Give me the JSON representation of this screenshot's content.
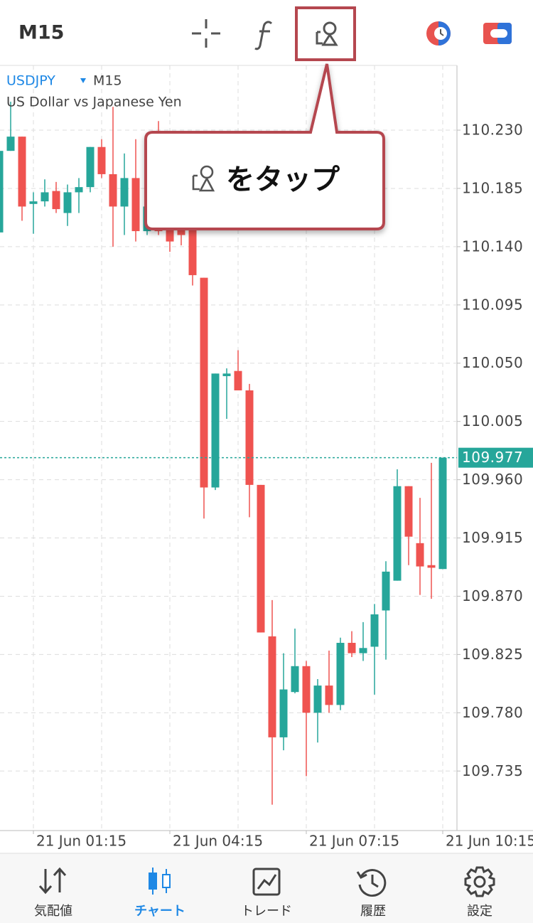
{
  "toolbar": {
    "timeframe": "M15"
  },
  "symbol": {
    "name": "USDJPY",
    "timeframe": "M15",
    "description": "US Dollar vs Japanese Yen"
  },
  "callout": {
    "text": "をタップ"
  },
  "chart_data": {
    "type": "candlestick",
    "categories": [
      null,
      null,
      null,
      "21 Jun 01:15",
      null,
      null,
      null,
      null,
      null,
      null,
      null,
      null,
      null,
      null,
      null,
      "21 Jun 04:15",
      null,
      null,
      null,
      null,
      null,
      null,
      null,
      null,
      null,
      null,
      null,
      "21 Jun 07:15",
      null,
      null,
      null,
      null,
      null,
      null,
      null,
      null,
      null,
      null,
      null,
      "21 Jun 10:15"
    ],
    "open": [
      110.151,
      110.214,
      110.225,
      110.173,
      110.175,
      110.183,
      110.166,
      110.182,
      110.186,
      110.217,
      110.196,
      110.171,
      110.193,
      110.152,
      110.193,
      110.155,
      110.166,
      110.155,
      110.116,
      109.954,
      110.04,
      110.044,
      110.029,
      109.956,
      109.839,
      109.761,
      109.796,
      109.816,
      109.78,
      109.801,
      109.786,
      109.834,
      109.826,
      109.831,
      109.859,
      109.882,
      109.955,
      109.911,
      109.894,
      109.891
    ],
    "high": [
      110.218,
      110.252,
      110.225,
      110.182,
      110.192,
      110.19,
      110.188,
      110.193,
      110.217,
      110.223,
      110.248,
      110.212,
      110.223,
      110.182,
      110.237,
      110.171,
      110.171,
      110.166,
      110.116,
      110.042,
      110.046,
      110.06,
      110.034,
      109.956,
      109.867,
      109.826,
      109.845,
      109.82,
      109.806,
      109.828,
      109.838,
      109.843,
      109.85,
      109.864,
      109.897,
      109.968,
      109.955,
      109.946,
      109.973,
      109.977
    ],
    "low": [
      110.15,
      110.214,
      110.16,
      110.15,
      110.171,
      110.166,
      110.156,
      110.166,
      110.182,
      110.193,
      110.14,
      110.149,
      110.144,
      110.149,
      110.149,
      110.136,
      110.141,
      110.11,
      109.93,
      109.952,
      110.007,
      110.029,
      109.931,
      109.842,
      109.709,
      109.751,
      109.795,
      109.731,
      109.757,
      109.78,
      109.782,
      109.823,
      109.82,
      109.794,
      109.821,
      109.882,
      109.894,
      109.871,
      109.868,
      109.891
    ],
    "close": [
      110.214,
      110.225,
      110.171,
      110.175,
      110.182,
      110.169,
      110.182,
      110.186,
      110.217,
      110.196,
      110.171,
      110.193,
      110.152,
      110.171,
      110.152,
      110.144,
      110.149,
      110.118,
      109.954,
      110.042,
      110.042,
      110.029,
      109.956,
      109.842,
      109.761,
      109.798,
      109.816,
      109.78,
      109.801,
      109.786,
      109.834,
      109.826,
      109.83,
      109.856,
      109.889,
      109.955,
      109.916,
      109.893,
      109.892,
      109.977
    ],
    "up_color": "#26a69a",
    "down_color": "#ef5350",
    "ylim": [
      109.689,
      110.28
    ],
    "yticks": [
      {
        "value": 110.23,
        "label": "110.230"
      },
      110.185,
      {
        "value": 110.14,
        "label": "110.140"
      },
      110.095,
      {
        "value": 110.05,
        "label": "110.050"
      },
      110.005,
      {
        "value": 109.96,
        "label": "109.960"
      },
      109.915,
      {
        "value": 109.87,
        "label": "109.870"
      },
      109.825,
      {
        "value": 109.78,
        "label": "109.780"
      },
      109.735
    ],
    "last_price": 109.977,
    "grid": true
  },
  "tabs": [
    {
      "label": "気配値"
    },
    {
      "label": "チャート"
    },
    {
      "label": "トレード"
    },
    {
      "label": "履歴"
    },
    {
      "label": "設定"
    }
  ],
  "active_tab": 1
}
